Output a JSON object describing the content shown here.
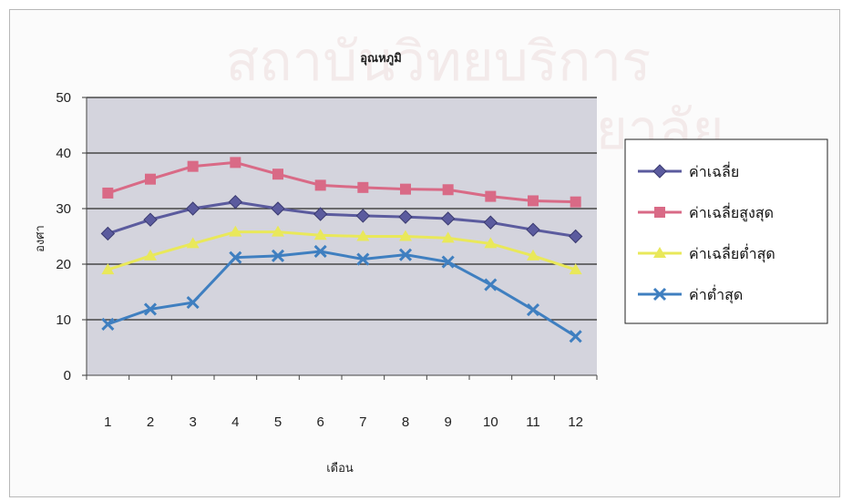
{
  "chart_data": {
    "type": "line",
    "title": "อุณหภูมิ",
    "xlabel": "เดือน",
    "ylabel": "องศา",
    "categories": [
      "1",
      "2",
      "3",
      "4",
      "5",
      "6",
      "7",
      "8",
      "9",
      "10",
      "11",
      "12"
    ],
    "ylim": [
      0,
      50
    ],
    "yticks": [
      0,
      10,
      20,
      30,
      40,
      50
    ],
    "grid": true,
    "legend_position": "right",
    "series": [
      {
        "name": "ค่าเฉลี่ย",
        "color": "#5b5b9e",
        "marker": "diamond",
        "values": [
          25.5,
          28,
          30,
          31.2,
          30,
          29,
          28.7,
          28.5,
          28.2,
          27.5,
          26.2,
          25
        ]
      },
      {
        "name": "ค่าเฉลี่ยสูงสุด",
        "color": "#d96a86",
        "marker": "square",
        "values": [
          32.8,
          35.3,
          37.6,
          38.3,
          36.2,
          34.2,
          33.8,
          33.5,
          33.4,
          32.2,
          31.4,
          31.2
        ]
      },
      {
        "name": "ค่าเฉลี่ยต่ำสุด",
        "color": "#e9e85a",
        "marker": "triangle",
        "values": [
          19,
          21.5,
          23.7,
          25.8,
          25.8,
          25.2,
          25,
          25,
          24.7,
          23.7,
          21.5,
          19
        ]
      },
      {
        "name": "ค่าต่ำสุด",
        "color": "#3f7fc0",
        "marker": "x",
        "values": [
          9.2,
          11.9,
          13.1,
          21.2,
          21.5,
          22.3,
          20.9,
          21.7,
          20.4,
          16.3,
          11.8,
          7
        ]
      }
    ]
  },
  "watermark": {
    "line1": "สถาบันวิทยบริการ",
    "line2": "จุฬาลงกรณ์มหาวิทยาลัย"
  }
}
